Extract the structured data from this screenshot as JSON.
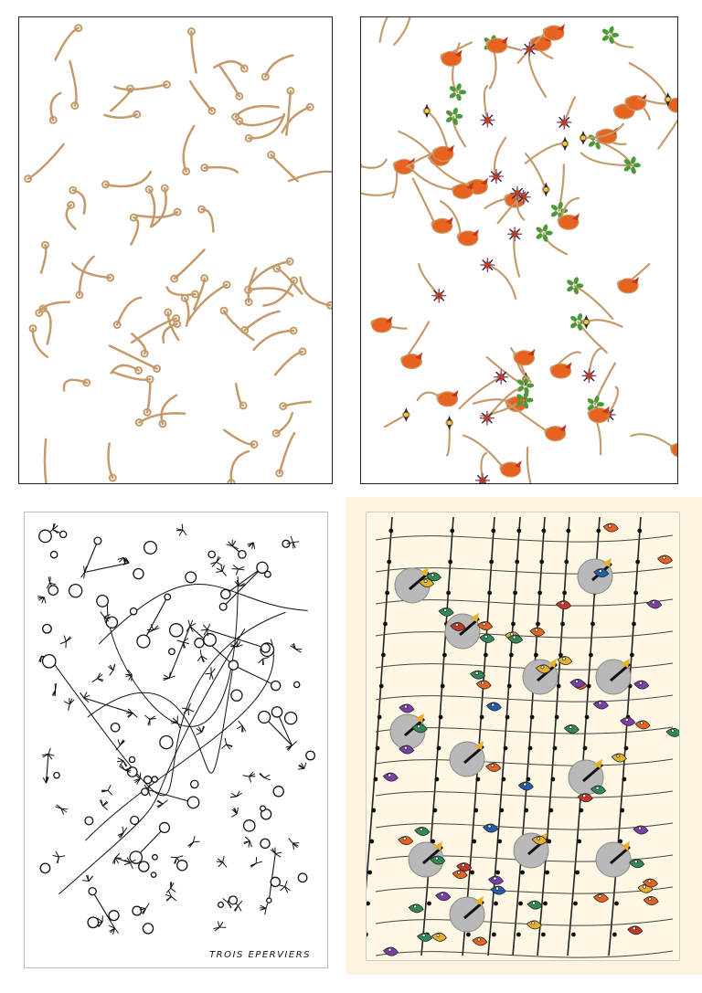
{
  "artworks": [
    {
      "id": "tan-branching-drawing",
      "line_color": "#c59a6b",
      "description_color": "#c59a6b"
    },
    {
      "id": "colored-bird-flower-drawing",
      "colors": [
        "#e8631f",
        "#c0391b",
        "#f3c84a",
        "#4a9a3a",
        "#1f7a7a",
        "#8b3fa8",
        "#2a2a2a"
      ]
    },
    {
      "id": "black-network-drawing",
      "line_color": "#111111",
      "caption": "TROIS EPERVIERS"
    },
    {
      "id": "hawk-pattern-painting",
      "background": "#fbf5e0",
      "colors": [
        "#b9b9b9",
        "#c0392b",
        "#e6b02a",
        "#2e8b57",
        "#1f5fa8",
        "#7a3fa8",
        "#e8631f"
      ]
    }
  ]
}
